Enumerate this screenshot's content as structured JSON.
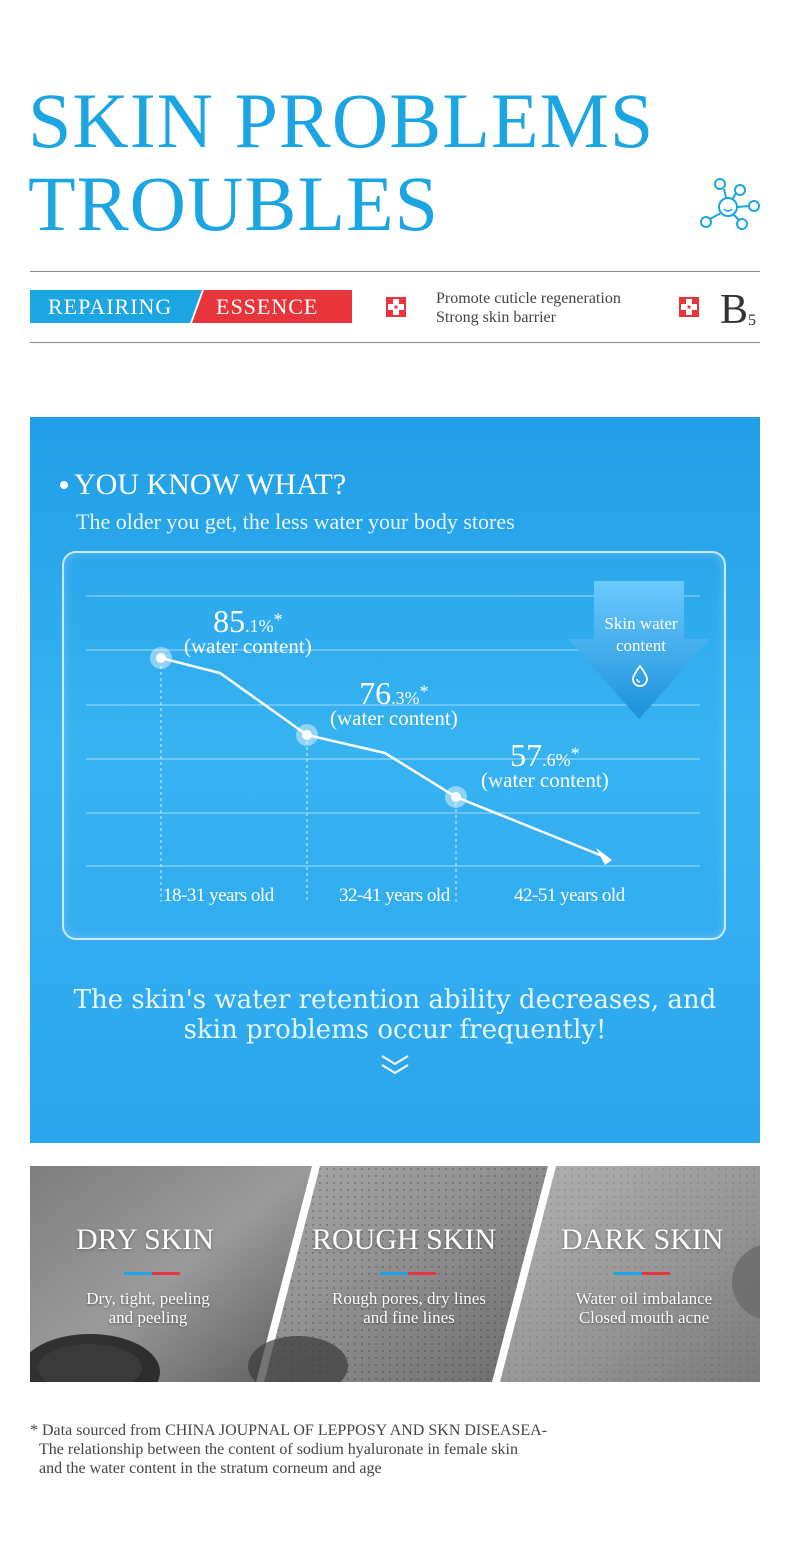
{
  "header": {
    "title_line1": "SKIN PROBLEMS",
    "title_line2": "TROUBLES",
    "molecule_icon": "molecule-icon"
  },
  "tagline": {
    "blue_label": "REPAIRING",
    "red_label": "ESSENCE",
    "promo_line1": "Promote cuticle regeneration",
    "promo_line2": "Strong skin barrier",
    "b5_letter": "B",
    "b5_sub": "5",
    "colors": {
      "blue": "#1ba6e3",
      "red": "#e8353b"
    }
  },
  "water_section": {
    "heading": "YOU KNOW WHAT?",
    "subheading": "The older you get, the less water your body stores",
    "badge_line1": "Skin water",
    "badge_line2": "content",
    "points": [
      {
        "big": "85",
        "small": ".1%",
        "star": "*",
        "label": "(water content)"
      },
      {
        "big": "76",
        "small": ".3%",
        "star": "*",
        "label": "(water content)"
      },
      {
        "big": "57",
        "small": ".6%",
        "star": "*",
        "label": "(water content)"
      }
    ],
    "ages": [
      "18-31 years old",
      "32-41 years old",
      "42-51 years old"
    ],
    "retention_line1": "The skin's water retention ability decreases, and",
    "retention_line2": "skin problems occur frequently!"
  },
  "skins": [
    {
      "title": "DRY SKIN",
      "desc1": "Dry, tight, peeling",
      "desc2": "and peeling"
    },
    {
      "title": "ROUGH SKIN",
      "desc1": "Rough pores, dry lines",
      "desc2": "and fine lines"
    },
    {
      "title": "DARK SKIN",
      "desc1": "Water oil imbalance",
      "desc2": "Closed mouth acne"
    }
  ],
  "footnote": {
    "line1": "* Data sourced from CHINA JOUPNAL OF LEPPOSY AND SKN DISEASEA-",
    "line2": "The relationship between the content of sodium hyaluronate in female skin",
    "line3": "and the water content in the stratum corneum and age"
  }
}
